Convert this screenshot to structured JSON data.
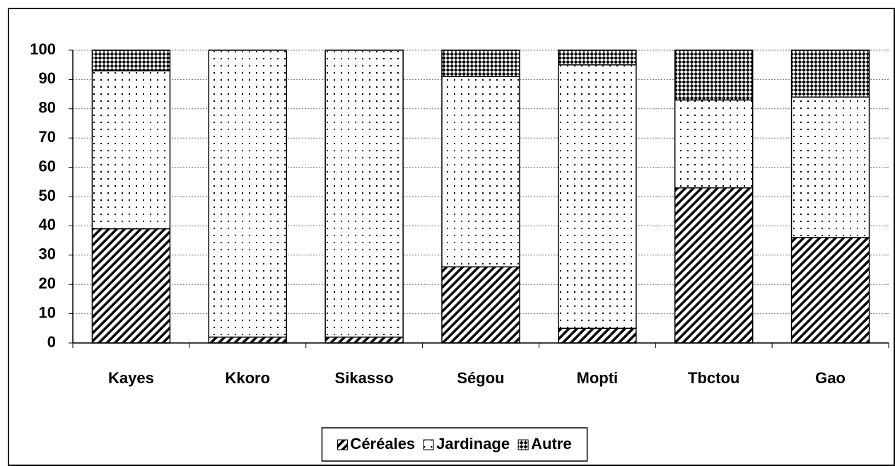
{
  "chart_data": {
    "type": "stacked_bar",
    "categories": [
      "Kayes",
      "Kkoro",
      "Sikasso",
      "Ségou",
      "Mopti",
      "Tbctou",
      "Gao"
    ],
    "series": [
      {
        "name": "Céréales",
        "color": "#000000",
        "pattern": "hatch",
        "values": [
          39,
          2,
          2,
          26,
          5,
          53,
          36
        ]
      },
      {
        "name": "Jardinage",
        "color": "#000000",
        "pattern": "dots",
        "values": [
          54,
          98,
          98,
          65,
          90,
          30,
          48
        ]
      },
      {
        "name": "Autre",
        "color": "#000000",
        "pattern": "check",
        "values": [
          7,
          0,
          0,
          9,
          5,
          17,
          16
        ]
      }
    ],
    "ylim": [
      0,
      100
    ],
    "yticks": [
      0,
      10,
      20,
      30,
      40,
      50,
      60,
      70,
      80,
      90,
      100
    ],
    "grid": true,
    "legend": "bottom"
  }
}
